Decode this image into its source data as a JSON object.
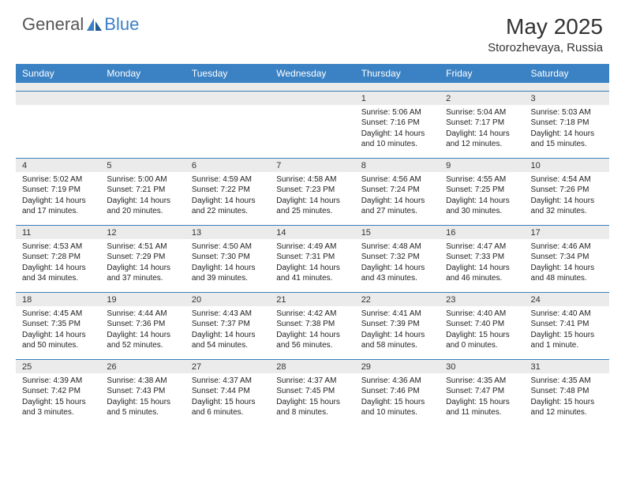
{
  "brand": {
    "part1": "General",
    "part2": "Blue"
  },
  "title": "May 2025",
  "location": "Storozhevaya, Russia",
  "colors": {
    "header_bg": "#3b82c4",
    "header_text": "#ffffff",
    "daynum_bg": "#ebebeb",
    "border": "#3b7fb8",
    "page_bg": "#ffffff",
    "text": "#222222"
  },
  "day_headers": [
    "Sunday",
    "Monday",
    "Tuesday",
    "Wednesday",
    "Thursday",
    "Friday",
    "Saturday"
  ],
  "weeks": [
    {
      "nums": [
        "",
        "",
        "",
        "",
        "1",
        "2",
        "3"
      ],
      "cells": [
        null,
        null,
        null,
        null,
        {
          "sunrise": "5:06 AM",
          "sunset": "7:16 PM",
          "daylight": "14 hours and 10 minutes."
        },
        {
          "sunrise": "5:04 AM",
          "sunset": "7:17 PM",
          "daylight": "14 hours and 12 minutes."
        },
        {
          "sunrise": "5:03 AM",
          "sunset": "7:18 PM",
          "daylight": "14 hours and 15 minutes."
        }
      ]
    },
    {
      "nums": [
        "4",
        "5",
        "6",
        "7",
        "8",
        "9",
        "10"
      ],
      "cells": [
        {
          "sunrise": "5:02 AM",
          "sunset": "7:19 PM",
          "daylight": "14 hours and 17 minutes."
        },
        {
          "sunrise": "5:00 AM",
          "sunset": "7:21 PM",
          "daylight": "14 hours and 20 minutes."
        },
        {
          "sunrise": "4:59 AM",
          "sunset": "7:22 PM",
          "daylight": "14 hours and 22 minutes."
        },
        {
          "sunrise": "4:58 AM",
          "sunset": "7:23 PM",
          "daylight": "14 hours and 25 minutes."
        },
        {
          "sunrise": "4:56 AM",
          "sunset": "7:24 PM",
          "daylight": "14 hours and 27 minutes."
        },
        {
          "sunrise": "4:55 AM",
          "sunset": "7:25 PM",
          "daylight": "14 hours and 30 minutes."
        },
        {
          "sunrise": "4:54 AM",
          "sunset": "7:26 PM",
          "daylight": "14 hours and 32 minutes."
        }
      ]
    },
    {
      "nums": [
        "11",
        "12",
        "13",
        "14",
        "15",
        "16",
        "17"
      ],
      "cells": [
        {
          "sunrise": "4:53 AM",
          "sunset": "7:28 PM",
          "daylight": "14 hours and 34 minutes."
        },
        {
          "sunrise": "4:51 AM",
          "sunset": "7:29 PM",
          "daylight": "14 hours and 37 minutes."
        },
        {
          "sunrise": "4:50 AM",
          "sunset": "7:30 PM",
          "daylight": "14 hours and 39 minutes."
        },
        {
          "sunrise": "4:49 AM",
          "sunset": "7:31 PM",
          "daylight": "14 hours and 41 minutes."
        },
        {
          "sunrise": "4:48 AM",
          "sunset": "7:32 PM",
          "daylight": "14 hours and 43 minutes."
        },
        {
          "sunrise": "4:47 AM",
          "sunset": "7:33 PM",
          "daylight": "14 hours and 46 minutes."
        },
        {
          "sunrise": "4:46 AM",
          "sunset": "7:34 PM",
          "daylight": "14 hours and 48 minutes."
        }
      ]
    },
    {
      "nums": [
        "18",
        "19",
        "20",
        "21",
        "22",
        "23",
        "24"
      ],
      "cells": [
        {
          "sunrise": "4:45 AM",
          "sunset": "7:35 PM",
          "daylight": "14 hours and 50 minutes."
        },
        {
          "sunrise": "4:44 AM",
          "sunset": "7:36 PM",
          "daylight": "14 hours and 52 minutes."
        },
        {
          "sunrise": "4:43 AM",
          "sunset": "7:37 PM",
          "daylight": "14 hours and 54 minutes."
        },
        {
          "sunrise": "4:42 AM",
          "sunset": "7:38 PM",
          "daylight": "14 hours and 56 minutes."
        },
        {
          "sunrise": "4:41 AM",
          "sunset": "7:39 PM",
          "daylight": "14 hours and 58 minutes."
        },
        {
          "sunrise": "4:40 AM",
          "sunset": "7:40 PM",
          "daylight": "15 hours and 0 minutes."
        },
        {
          "sunrise": "4:40 AM",
          "sunset": "7:41 PM",
          "daylight": "15 hours and 1 minute."
        }
      ]
    },
    {
      "nums": [
        "25",
        "26",
        "27",
        "28",
        "29",
        "30",
        "31"
      ],
      "cells": [
        {
          "sunrise": "4:39 AM",
          "sunset": "7:42 PM",
          "daylight": "15 hours and 3 minutes."
        },
        {
          "sunrise": "4:38 AM",
          "sunset": "7:43 PM",
          "daylight": "15 hours and 5 minutes."
        },
        {
          "sunrise": "4:37 AM",
          "sunset": "7:44 PM",
          "daylight": "15 hours and 6 minutes."
        },
        {
          "sunrise": "4:37 AM",
          "sunset": "7:45 PM",
          "daylight": "15 hours and 8 minutes."
        },
        {
          "sunrise": "4:36 AM",
          "sunset": "7:46 PM",
          "daylight": "15 hours and 10 minutes."
        },
        {
          "sunrise": "4:35 AM",
          "sunset": "7:47 PM",
          "daylight": "15 hours and 11 minutes."
        },
        {
          "sunrise": "4:35 AM",
          "sunset": "7:48 PM",
          "daylight": "15 hours and 12 minutes."
        }
      ]
    }
  ],
  "labels": {
    "sunrise": "Sunrise: ",
    "sunset": "Sunset: ",
    "daylight": "Daylight: "
  }
}
